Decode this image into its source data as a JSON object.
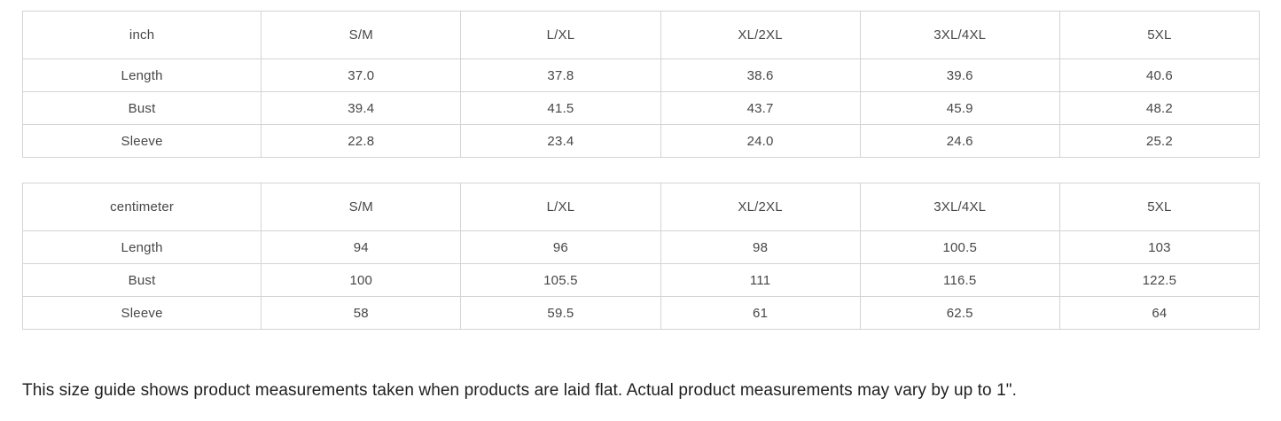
{
  "colors": {
    "background": "#ffffff",
    "table_border": "#d4d4d4",
    "table_text": "#474747",
    "note_text": "#1f1f1f"
  },
  "tables": [
    {
      "unit_label": "inch",
      "size_headers": [
        "S/M",
        "L/XL",
        "XL/2XL",
        "3XL/4XL",
        "5XL"
      ],
      "rows": [
        {
          "label": "Length",
          "values": [
            "37.0",
            "37.8",
            "38.6",
            "39.6",
            "40.6"
          ]
        },
        {
          "label": "Bust",
          "values": [
            "39.4",
            "41.5",
            "43.7",
            "45.9",
            "48.2"
          ]
        },
        {
          "label": "Sleeve",
          "values": [
            "22.8",
            "23.4",
            "24.0",
            "24.6",
            "25.2"
          ]
        }
      ]
    },
    {
      "unit_label": "centimeter",
      "size_headers": [
        "S/M",
        "L/XL",
        "XL/2XL",
        "3XL/4XL",
        "5XL"
      ],
      "rows": [
        {
          "label": "Length",
          "values": [
            "94",
            "96",
            "98",
            "100.5",
            "103"
          ]
        },
        {
          "label": "Bust",
          "values": [
            "100",
            "105.5",
            "111",
            "116.5",
            "122.5"
          ]
        },
        {
          "label": "Sleeve",
          "values": [
            "58",
            "59.5",
            "61",
            "62.5",
            "64"
          ]
        }
      ]
    }
  ],
  "chart_data": [
    {
      "type": "table",
      "title": "inch",
      "columns": [
        "inch",
        "S/M",
        "L/XL",
        "XL/2XL",
        "3XL/4XL",
        "5XL"
      ],
      "rows": [
        [
          "Length",
          37.0,
          37.8,
          38.6,
          39.6,
          40.6
        ],
        [
          "Bust",
          39.4,
          41.5,
          43.7,
          45.9,
          48.2
        ],
        [
          "Sleeve",
          22.8,
          23.4,
          24.0,
          24.6,
          25.2
        ]
      ]
    },
    {
      "type": "table",
      "title": "centimeter",
      "columns": [
        "centimeter",
        "S/M",
        "L/XL",
        "XL/2XL",
        "3XL/4XL",
        "5XL"
      ],
      "rows": [
        [
          "Length",
          94,
          96,
          98,
          100.5,
          103
        ],
        [
          "Bust",
          100,
          105.5,
          111,
          116.5,
          122.5
        ],
        [
          "Sleeve",
          58,
          59.5,
          61,
          62.5,
          64
        ]
      ]
    }
  ],
  "footer": {
    "note": "This size guide shows product measurements taken when products are laid flat. Actual product measurements may vary by up to 1\"."
  }
}
